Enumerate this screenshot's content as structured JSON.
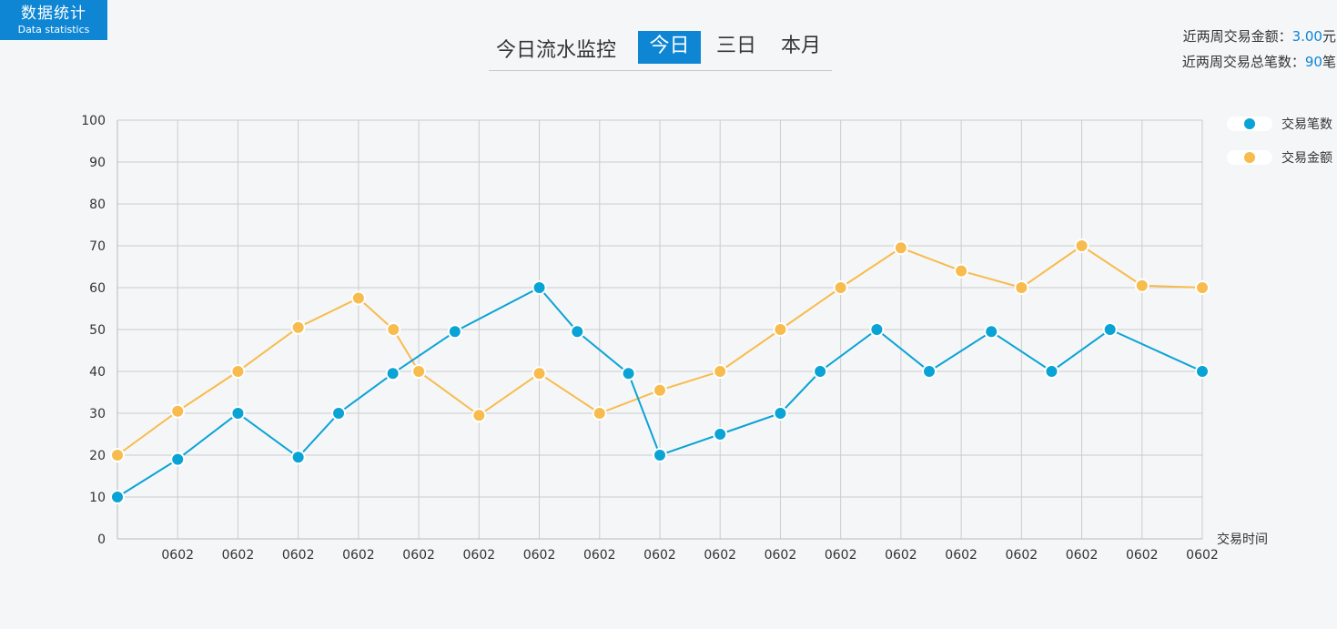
{
  "badge": {
    "title": "数据统计",
    "subtitle": "Data statistics"
  },
  "tabs": {
    "title": "今日流水监控",
    "items": [
      "今日",
      "三日",
      "本月"
    ],
    "active": 0
  },
  "summary": {
    "amount_label": "近两周交易金额：",
    "amount_value": "3.00",
    "amount_unit": "元",
    "count_label": "近两周交易总笔数：",
    "count_value": "90",
    "count_unit": "笔"
  },
  "colors": {
    "accent": "#0e86d4",
    "series_count": "#0aa3d6",
    "series_amount": "#f7bc4d",
    "grid": "#cccccc"
  },
  "chart_data": {
    "type": "line",
    "xlabel": "交易时间",
    "ylabel": "",
    "ylim": [
      0,
      100
    ],
    "yticks": [
      0,
      10,
      20,
      30,
      40,
      50,
      60,
      70,
      80,
      90,
      100
    ],
    "xlim": [
      0,
      18
    ],
    "categories": [
      "0602",
      "0602",
      "0602",
      "0602",
      "0602",
      "0602",
      "0602",
      "0602",
      "0602",
      "0602",
      "0602",
      "0602",
      "0602",
      "0602",
      "0602",
      "0602",
      "0602",
      "0602"
    ],
    "grid": true,
    "legend": "right",
    "series": [
      {
        "name": "交易笔数",
        "color": "#0aa3d6",
        "points": [
          [
            0,
            10
          ],
          [
            1,
            19
          ],
          [
            2,
            30
          ],
          [
            3,
            19.5
          ],
          [
            3.67,
            30
          ],
          [
            4.57,
            39.5
          ],
          [
            5.6,
            49.5
          ],
          [
            7,
            60
          ],
          [
            7.63,
            49.5
          ],
          [
            8.48,
            39.5
          ],
          [
            9,
            20
          ],
          [
            10,
            25
          ],
          [
            11,
            30
          ],
          [
            11.66,
            40
          ],
          [
            12.6,
            50
          ],
          [
            13.47,
            40
          ],
          [
            14.5,
            49.5
          ],
          [
            15.5,
            40
          ],
          [
            16.47,
            50
          ],
          [
            18,
            40
          ]
        ]
      },
      {
        "name": "交易金额",
        "color": "#f7bc4d",
        "points": [
          [
            0,
            20
          ],
          [
            1,
            30.5
          ],
          [
            2,
            40
          ],
          [
            3,
            50.5
          ],
          [
            4,
            57.5
          ],
          [
            4.58,
            50
          ],
          [
            5,
            40
          ],
          [
            6,
            29.5
          ],
          [
            7,
            39.5
          ],
          [
            8,
            30
          ],
          [
            9,
            35.5
          ],
          [
            10,
            40
          ],
          [
            11,
            50
          ],
          [
            12,
            60
          ],
          [
            13,
            69.5
          ],
          [
            14,
            64
          ],
          [
            15,
            60
          ],
          [
            16,
            70
          ],
          [
            17,
            60.5
          ],
          [
            18,
            60
          ]
        ]
      }
    ]
  }
}
